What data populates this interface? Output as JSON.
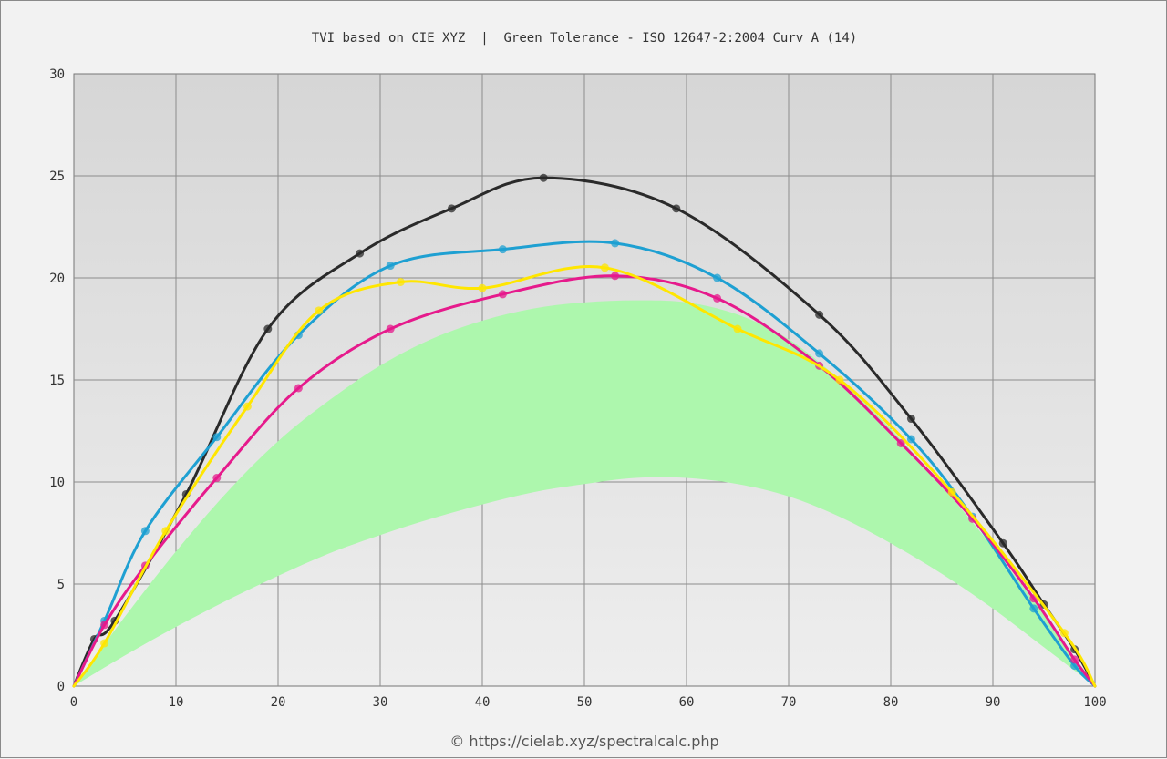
{
  "credit": "© https://cielab.xyz/spectralcalc.php",
  "chart_data": {
    "type": "line",
    "title": "TVI based on CIE XYZ  |  Green Tolerance - ISO 12647-2:2004 Curv A (14)",
    "xlabel": "",
    "ylabel": "",
    "xlim": [
      0,
      100
    ],
    "ylim": [
      0,
      30
    ],
    "xticks": [
      0,
      10,
      20,
      30,
      40,
      50,
      60,
      70,
      80,
      90,
      100
    ],
    "yticks": [
      0,
      5,
      10,
      15,
      20,
      25,
      30
    ],
    "grid": true,
    "tolerance_band": {
      "color": "#adf7ad",
      "x": [
        0,
        5,
        10,
        15,
        20,
        25,
        30,
        35,
        40,
        45,
        50,
        55,
        60,
        65,
        70,
        75,
        80,
        85,
        90,
        95,
        100
      ],
      "upper": [
        0,
        3.4,
        6.6,
        9.5,
        12.0,
        14.0,
        15.7,
        17.0,
        17.9,
        18.5,
        18.8,
        18.9,
        18.8,
        18.2,
        17.0,
        15.0,
        12.6,
        9.8,
        6.8,
        3.5,
        0
      ],
      "lower": [
        0,
        1.5,
        2.9,
        4.2,
        5.4,
        6.5,
        7.4,
        8.2,
        8.9,
        9.5,
        9.9,
        10.2,
        10.2,
        9.9,
        9.3,
        8.3,
        7.0,
        5.5,
        3.8,
        1.9,
        0
      ]
    },
    "series": [
      {
        "color": "#2a2a2a",
        "x": [
          0,
          2,
          4,
          11,
          19,
          28,
          37,
          46,
          59,
          73,
          82,
          91,
          95,
          98,
          100
        ],
        "y": [
          0,
          2.3,
          3.2,
          9.4,
          17.5,
          21.2,
          23.4,
          24.9,
          23.4,
          18.2,
          13.1,
          7.0,
          4.0,
          1.8,
          0
        ]
      },
      {
        "color": "#1ea0d2",
        "x": [
          0,
          3,
          7,
          14,
          22,
          31,
          42,
          53,
          63,
          73,
          82,
          88,
          94,
          98,
          100
        ],
        "y": [
          0,
          3.2,
          7.6,
          12.2,
          17.2,
          20.6,
          21.4,
          21.7,
          20.0,
          16.3,
          12.1,
          8.3,
          3.8,
          1.0,
          0
        ]
      },
      {
        "color": "#e61a8c",
        "x": [
          0,
          3,
          7,
          14,
          22,
          31,
          42,
          53,
          63,
          73,
          81,
          88,
          94,
          98,
          100
        ],
        "y": [
          0,
          3.0,
          5.9,
          10.2,
          14.6,
          17.5,
          19.2,
          20.1,
          19.0,
          15.7,
          11.9,
          8.2,
          4.3,
          1.3,
          0
        ]
      },
      {
        "color": "#ffe600",
        "x": [
          0,
          3,
          9,
          17,
          24,
          32,
          40,
          52,
          65,
          75,
          86,
          97,
          100
        ],
        "y": [
          0,
          2.1,
          7.6,
          13.7,
          18.4,
          19.8,
          19.5,
          20.5,
          17.5,
          15.0,
          9.5,
          2.6,
          0
        ]
      }
    ]
  }
}
